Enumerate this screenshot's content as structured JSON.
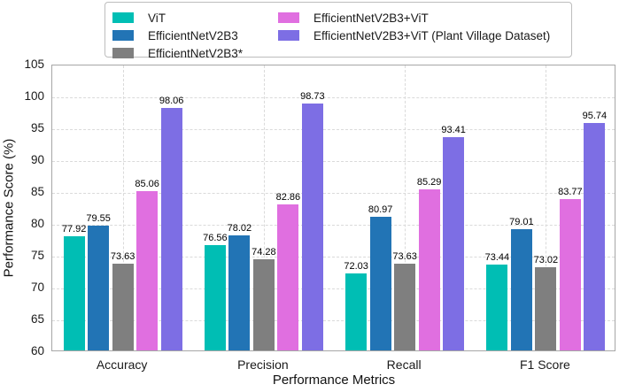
{
  "chart_data": {
    "type": "bar",
    "title": "",
    "xlabel": "Performance Metrics",
    "ylabel": "Performance Score (%)",
    "ylim": [
      60,
      105
    ],
    "ytick_step": 5,
    "grid": true,
    "legend_position": "upper center",
    "legend_columns": [
      3,
      2
    ],
    "categories": [
      "Accuracy",
      "Precision",
      "Recall",
      "F1 Score"
    ],
    "series": [
      {
        "name": "ViT",
        "color": "#00beb4",
        "values": [
          77.92,
          76.56,
          72.03,
          73.44
        ]
      },
      {
        "name": "EfficientNetV2B3",
        "color": "#2274b5",
        "values": [
          79.55,
          78.02,
          80.97,
          79.01
        ]
      },
      {
        "name": "EfficientNetV2B3*",
        "color": "#7f7f7f",
        "values": [
          73.63,
          74.28,
          73.63,
          73.02
        ]
      },
      {
        "name": "EfficientNetV2B3+ViT",
        "color": "#e06fe0",
        "values": [
          85.06,
          82.86,
          85.29,
          83.77
        ]
      },
      {
        "name": "EfficientNetV2B3+ViT (Plant Village Dataset)",
        "color": "#7d6ee4",
        "values": [
          98.06,
          98.73,
          93.41,
          95.74
        ]
      }
    ]
  }
}
